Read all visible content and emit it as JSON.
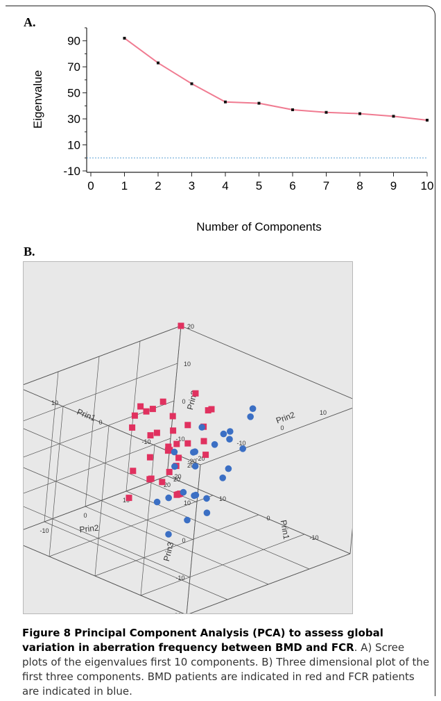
{
  "panel_a": {
    "label": "A.",
    "colors": {
      "line": "#f07b91",
      "point": "#111111",
      "zero_line": "#5a9fd4"
    }
  },
  "panel_b": {
    "label": "B.",
    "colors": {
      "bmd": "#e0315f",
      "fcr": "#3b6fc4",
      "grid": "#555555"
    },
    "axis_labels": {
      "prin1_top": "Prin1",
      "prin2_top": "Prin2",
      "prin3_right": "Prin3",
      "prin3_left": "Prin3",
      "prin2_bottom": "Prin2",
      "prin1_right": "Prin1"
    }
  },
  "caption": {
    "bold": "Figure 8 Principal Component Analysis (PCA) to assess global variation in aberration frequency between BMD and FCR",
    "text": ". A) Scree plots of the eigenvalues first 10 components. B) Three dimensional plot of the first three components. BMD patients are indicated in red and FCR patients are indicated in blue."
  },
  "chart_data": [
    {
      "type": "line",
      "title": "",
      "xlabel": "Number of Components",
      "ylabel": "Eigenvalue",
      "x": [
        1,
        2,
        3,
        4,
        5,
        6,
        7,
        8,
        9,
        10
      ],
      "series": [
        {
          "values": [
            92,
            73,
            57,
            43,
            42,
            37,
            35,
            34,
            32,
            29
          ]
        }
      ],
      "xlim": [
        0,
        10
      ],
      "ylim": [
        -10,
        100
      ],
      "xticks": [
        "0",
        "1",
        "2",
        "3",
        "4",
        "5",
        "6",
        "7",
        "8",
        "9",
        "10"
      ],
      "yticks": [
        "-10",
        "10",
        "30",
        "50",
        "70",
        "90"
      ],
      "reference_line_y": 0
    },
    {
      "type": "scatter",
      "title": "",
      "axes": [
        "Prin1",
        "Prin2",
        "Prin3"
      ],
      "tick_labels": [
        "-20",
        "-10",
        "0",
        "10",
        "20"
      ],
      "series": [
        {
          "group": "BMD",
          "color": "#e0315f",
          "marker": "square",
          "points": [
            [
              20,
              20,
              20
            ],
            [
              2,
              8,
              12
            ],
            [
              4,
              6,
              16
            ],
            [
              9,
              4,
              12
            ],
            [
              12,
              2,
              10
            ],
            [
              6,
              12,
              8
            ],
            [
              3,
              4,
              4
            ],
            [
              8,
              6,
              4
            ],
            [
              10,
              8,
              6
            ],
            [
              14,
              6,
              6
            ],
            [
              5,
              2,
              2
            ],
            [
              7,
              4,
              0
            ],
            [
              9,
              2,
              -2
            ],
            [
              11,
              4,
              2
            ],
            [
              13,
              8,
              0
            ],
            [
              15,
              4,
              2
            ],
            [
              2,
              0,
              6
            ],
            [
              -2,
              -4,
              6
            ],
            [
              0,
              -2,
              2
            ],
            [
              3,
              0,
              -2
            ],
            [
              1,
              -4,
              -2
            ],
            [
              5,
              -2,
              -4
            ],
            [
              7,
              0,
              -6
            ],
            [
              9,
              -2,
              -4
            ],
            [
              -4,
              -6,
              -2
            ],
            [
              -6,
              -8,
              0
            ],
            [
              -2,
              2,
              8
            ],
            [
              0,
              4,
              10
            ],
            [
              12,
              10,
              -4
            ],
            [
              16,
              10,
              4
            ],
            [
              4,
              10,
              -2
            ],
            [
              6,
              -6,
              -8
            ],
            [
              10,
              12,
              2
            ],
            [
              18,
              8,
              2
            ],
            [
              -8,
              -10,
              2
            ]
          ]
        },
        {
          "group": "FCR",
          "color": "#3b6fc4",
          "marker": "circle",
          "points": [
            [
              -14,
              -6,
              18
            ],
            [
              -10,
              4,
              20
            ],
            [
              -8,
              6,
              16
            ],
            [
              -16,
              -8,
              12
            ],
            [
              -12,
              0,
              12
            ],
            [
              -6,
              0,
              10
            ],
            [
              -4,
              6,
              10
            ],
            [
              -10,
              -2,
              4
            ],
            [
              -12,
              -8,
              2
            ],
            [
              -8,
              -6,
              0
            ],
            [
              -6,
              -4,
              -2
            ],
            [
              -4,
              -2,
              4
            ],
            [
              -2,
              0,
              6
            ],
            [
              0,
              2,
              4
            ],
            [
              2,
              0,
              0
            ],
            [
              -2,
              -2,
              -4
            ],
            [
              0,
              -6,
              -6
            ],
            [
              -8,
              -12,
              -8
            ],
            [
              -4,
              -8,
              -2
            ],
            [
              4,
              2,
              2
            ],
            [
              -10,
              -10,
              -4
            ],
            [
              -14,
              -10,
              0
            ],
            [
              2,
              6,
              8
            ],
            [
              -6,
              2,
              12
            ]
          ]
        }
      ]
    }
  ]
}
